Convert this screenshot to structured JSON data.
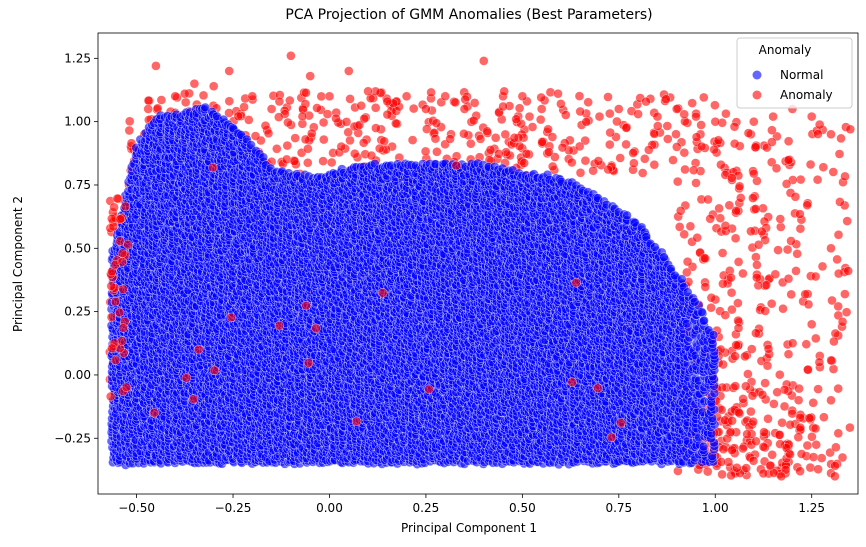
{
  "chart_data": {
    "type": "scatter",
    "title": "PCA Projection of GMM Anomalies (Best Parameters)",
    "xlabel": "Principal Component 1",
    "ylabel": "Principal Component 2",
    "xlim": [
      -0.6,
      1.37
    ],
    "ylim": [
      -0.47,
      1.35
    ],
    "xticks": [
      -0.5,
      -0.25,
      0.0,
      0.25,
      0.5,
      0.75,
      1.0,
      1.25
    ],
    "xtick_labels": [
      "−0.50",
      "−0.25",
      "0.00",
      "0.25",
      "0.50",
      "0.75",
      "1.00",
      "1.25"
    ],
    "yticks": [
      -0.25,
      0.0,
      0.25,
      0.5,
      0.75,
      1.0,
      1.25
    ],
    "ytick_labels": [
      "−0.25",
      "0.00",
      "0.25",
      "0.50",
      "0.75",
      "1.00",
      "1.25"
    ],
    "grid": false,
    "legend": {
      "title": "Anomaly",
      "placement": "top-right",
      "entries": [
        {
          "label": "Normal",
          "color": "#0000ff"
        },
        {
          "label": "Anomaly",
          "color": "#ff0000"
        }
      ]
    },
    "series": [
      {
        "name": "Normal",
        "color": "#0000ff",
        "description_points": "dense cloud",
        "region": {
          "x_min": -0.56,
          "x_max": 1.0,
          "y_bottom": -0.35,
          "top_profile": [
            [
              -0.56,
              0.5
            ],
            [
              -0.5,
              0.9
            ],
            [
              -0.45,
              1.02
            ],
            [
              -0.38,
              1.04
            ],
            [
              -0.32,
              1.06
            ],
            [
              -0.28,
              1.02
            ],
            [
              -0.22,
              0.95
            ],
            [
              -0.15,
              0.82
            ],
            [
              -0.1,
              0.8
            ],
            [
              -0.05,
              0.78
            ],
            [
              0.0,
              0.8
            ],
            [
              0.1,
              0.83
            ],
            [
              0.2,
              0.83
            ],
            [
              0.3,
              0.84
            ],
            [
              0.4,
              0.83
            ],
            [
              0.5,
              0.8
            ],
            [
              0.6,
              0.78
            ],
            [
              0.7,
              0.7
            ],
            [
              0.8,
              0.6
            ],
            [
              0.85,
              0.5
            ],
            [
              0.9,
              0.4
            ],
            [
              0.95,
              0.3
            ],
            [
              1.0,
              0.15
            ]
          ]
        }
      },
      {
        "name": "Anomaly",
        "color": "#ff0000",
        "points": [
          [
            -0.56,
            0.05
          ],
          [
            -0.55,
            0.2
          ],
          [
            -0.55,
            0.35
          ],
          [
            -0.54,
            0.5
          ],
          [
            -0.55,
            -0.05
          ],
          [
            -0.54,
            0.62
          ],
          [
            -0.52,
            0.75
          ],
          [
            -0.5,
            0.88
          ],
          [
            -0.48,
            0.95
          ],
          [
            -0.47,
            1.05
          ],
          [
            -0.45,
            1.22
          ],
          [
            -0.4,
            1.1
          ],
          [
            -0.35,
            1.15
          ],
          [
            -0.3,
            1.14
          ],
          [
            -0.26,
            1.2
          ],
          [
            -0.2,
            1.1
          ],
          [
            -0.15,
            1.05
          ],
          [
            -0.1,
            1.26
          ],
          [
            -0.05,
            1.18
          ],
          [
            0.0,
            1.1
          ],
          [
            0.05,
            1.2
          ],
          [
            0.1,
            1.12
          ],
          [
            0.15,
            1.08
          ],
          [
            0.2,
            1.1
          ],
          [
            0.25,
            1.05
          ],
          [
            0.3,
            1.1
          ],
          [
            0.35,
            1.05
          ],
          [
            0.4,
            1.24
          ],
          [
            0.45,
            1.06
          ],
          [
            0.5,
            1.1
          ],
          [
            0.55,
            1.05
          ],
          [
            0.6,
            1.07
          ],
          [
            0.65,
            1.04
          ],
          [
            0.7,
            1.02
          ],
          [
            0.75,
            1.05
          ],
          [
            0.8,
            1.03
          ],
          [
            0.85,
            1.02
          ],
          [
            0.9,
            1.05
          ],
          [
            0.95,
            1.02
          ],
          [
            1.0,
            1.0
          ],
          [
            1.05,
            0.98
          ],
          [
            1.1,
            1.0
          ],
          [
            1.15,
            1.02
          ],
          [
            1.2,
            1.05
          ],
          [
            1.25,
            1.02
          ],
          [
            1.3,
            0.95
          ],
          [
            1.35,
            0.97
          ],
          [
            1.28,
            0.82
          ],
          [
            1.3,
            0.5
          ],
          [
            1.32,
            0.4
          ],
          [
            1.33,
            0.21
          ],
          [
            1.25,
            0.2
          ],
          [
            1.27,
            0.05
          ],
          [
            1.3,
            -0.1
          ],
          [
            1.31,
            -0.4
          ],
          [
            1.22,
            -0.38
          ],
          [
            1.0,
            -0.32
          ]
        ],
        "regions": [
          {
            "name": "top-band",
            "x_min": -0.52,
            "x_max": 1.05,
            "y_min": 0.78,
            "y_max": 1.12
          },
          {
            "name": "right-fan",
            "x_min": 0.9,
            "x_max": 1.35,
            "y_min": -0.4,
            "y_max": 1.0
          },
          {
            "name": "right-dense",
            "x_min": 0.95,
            "x_max": 1.27,
            "y_min": -0.4,
            "y_max": -0.05
          },
          {
            "name": "left-edge",
            "x_min": -0.57,
            "x_max": -0.5,
            "y_min": -0.1,
            "y_max": 0.7
          }
        ]
      }
    ]
  }
}
